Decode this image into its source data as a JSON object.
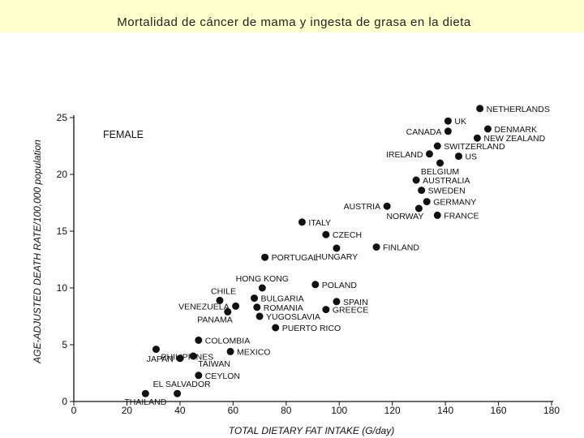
{
  "page": {
    "title": "Mortalidad de cáncer de mama y ingesta de grasa en la dieta"
  },
  "chart_data": {
    "type": "scatter",
    "legend_text": "FEMALE",
    "xlabel": "TOTAL DIETARY FAT INTAKE (G/day)",
    "ylabel": "AGE-ADJUSTED DEATH RATE/100,000 population",
    "xlim": [
      0,
      180
    ],
    "ylim": [
      0,
      25
    ],
    "xticks": [
      0,
      20,
      40,
      60,
      80,
      100,
      120,
      140,
      160,
      180
    ],
    "yticks": [
      0,
      5,
      10,
      15,
      20,
      25
    ],
    "grid": false,
    "points": [
      {
        "label": "THAILAND",
        "x": 27,
        "y": 0.7
      },
      {
        "label": "EL SALVADOR",
        "x": 39,
        "y": 0.7
      },
      {
        "label": "CEYLON",
        "x": 47,
        "y": 2.3
      },
      {
        "label": "JAPAN",
        "x": 40,
        "y": 3.8
      },
      {
        "label": "TAIWAN",
        "x": 45,
        "y": 4.0
      },
      {
        "label": "PHILIPPINES",
        "x": 31,
        "y": 4.6
      },
      {
        "label": "MEXICO",
        "x": 59,
        "y": 4.4
      },
      {
        "label": "COLOMBIA",
        "x": 47,
        "y": 5.4
      },
      {
        "label": "PUERTO RICO",
        "x": 76,
        "y": 6.5
      },
      {
        "label": "YUGOSLAVIA",
        "x": 70,
        "y": 7.5
      },
      {
        "label": "GREECE",
        "x": 95,
        "y": 8.1
      },
      {
        "label": "SPAIN",
        "x": 99,
        "y": 8.8
      },
      {
        "label": "ROMANIA",
        "x": 69,
        "y": 8.3
      },
      {
        "label": "BULGARIA",
        "x": 68,
        "y": 9.1
      },
      {
        "label": "PANAMA",
        "x": 58,
        "y": 7.9
      },
      {
        "label": "VENEZUELA",
        "x": 61,
        "y": 8.4
      },
      {
        "label": "CHILE",
        "x": 55,
        "y": 8.9
      },
      {
        "label": "HONG KONG",
        "x": 71,
        "y": 10.0
      },
      {
        "label": "POLAND",
        "x": 91,
        "y": 10.3
      },
      {
        "label": "PORTUGAL",
        "x": 72,
        "y": 12.7
      },
      {
        "label": "HUNGARY",
        "x": 99,
        "y": 13.5
      },
      {
        "label": "FINLAND",
        "x": 114,
        "y": 13.6
      },
      {
        "label": "CZECH",
        "x": 95,
        "y": 14.7
      },
      {
        "label": "ITALY",
        "x": 86,
        "y": 15.8
      },
      {
        "label": "AUSTRIA",
        "x": 118,
        "y": 17.2
      },
      {
        "label": "NORWAY",
        "x": 130,
        "y": 17.0
      },
      {
        "label": "FRANCE",
        "x": 137,
        "y": 16.4
      },
      {
        "label": "GERMANY",
        "x": 133,
        "y": 17.6
      },
      {
        "label": "SWEDEN",
        "x": 131,
        "y": 18.6
      },
      {
        "label": "AUSTRALIA",
        "x": 129,
        "y": 19.5
      },
      {
        "label": "BELGIUM",
        "x": 138,
        "y": 21.0
      },
      {
        "label": "IRELAND",
        "x": 134,
        "y": 21.8
      },
      {
        "label": "SWITZERLAND",
        "x": 137,
        "y": 22.5
      },
      {
        "label": "US",
        "x": 145,
        "y": 21.6
      },
      {
        "label": "CANADA",
        "x": 141,
        "y": 23.8
      },
      {
        "label": "UK",
        "x": 141,
        "y": 24.7
      },
      {
        "label": "NEW ZEALAND",
        "x": 152,
        "y": 23.2
      },
      {
        "label": "DENMARK",
        "x": 156,
        "y": 24.0
      },
      {
        "label": "NETHERLANDS",
        "x": 153,
        "y": 25.8
      }
    ]
  }
}
